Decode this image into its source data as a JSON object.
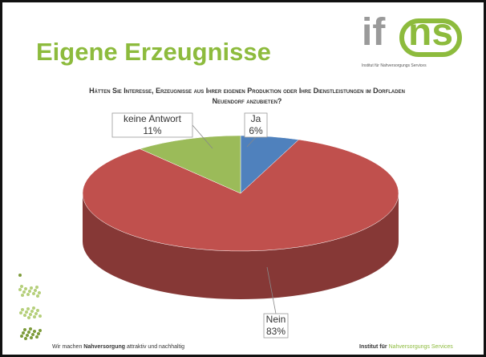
{
  "header": {
    "title": "Eigene Erzeugnisse"
  },
  "logo": {
    "left": "if",
    "right": "ns",
    "tagline": "Institut für Nahversorgungs Services"
  },
  "chart_data": {
    "type": "pie",
    "title": "Hätten Sie Interesse, Erzeugnisse aus Ihrer eigenen Produktion oder Ihre Dienstleistungen im Dorfladen Neuendorf anzubieten?",
    "categories": [
      "Ja",
      "Nein",
      "keine Antwort"
    ],
    "values": [
      6,
      83,
      11
    ],
    "value_labels": [
      "6%",
      "83%",
      "11%"
    ],
    "colors": [
      "#4f81bd",
      "#c0504d",
      "#9bbb59"
    ]
  },
  "footer": {
    "left": [
      "Wir machen",
      "Nahversorgung",
      "attraktiv und nachhaltig"
    ],
    "right": [
      "Institut für",
      "Nahversorgungs Services"
    ]
  }
}
